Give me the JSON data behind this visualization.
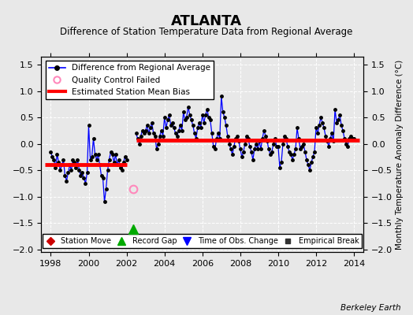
{
  "title": "ATLANTA",
  "subtitle": "Difference of Station Temperature Data from Regional Average",
  "ylabel": "Monthly Temperature Anomaly Difference (°C)",
  "xlim": [
    1997.5,
    2014.5
  ],
  "ylim": [
    -2.05,
    1.65
  ],
  "yticks": [
    -2,
    -1.5,
    -1,
    -0.5,
    0,
    0.5,
    1,
    1.5
  ],
  "xticks": [
    1998,
    2000,
    2002,
    2004,
    2006,
    2008,
    2010,
    2012,
    2014
  ],
  "fig_bg_color": "#e8e8e8",
  "plot_bg_color": "#e8e8e8",
  "line_color": "#0000ff",
  "dot_color": "#000000",
  "bias_color": "#ff0000",
  "segment1_x_start": 1997.7,
  "segment1_x_end": 2002.0,
  "segment1_bias": -0.4,
  "segment2_x_start": 2002.5,
  "segment2_x_end": 2014.3,
  "segment2_bias": 0.07,
  "record_gap_x": 2002.33,
  "record_gap_y": -1.62,
  "qc_fail_x": 2002.33,
  "qc_fail_y": -0.85,
  "berkeley_earth_text": "Berkeley Earth",
  "data_x": [
    1998.0,
    1998.083,
    1998.167,
    1998.25,
    1998.333,
    1998.417,
    1998.5,
    1998.583,
    1998.667,
    1998.75,
    1998.833,
    1998.917,
    1999.0,
    1999.083,
    1999.167,
    1999.25,
    1999.333,
    1999.417,
    1999.5,
    1999.583,
    1999.667,
    1999.75,
    1999.833,
    1999.917,
    2000.0,
    2000.083,
    2000.167,
    2000.25,
    2000.333,
    2000.417,
    2000.5,
    2000.583,
    2000.667,
    2000.75,
    2000.833,
    2000.917,
    2001.0,
    2001.083,
    2001.167,
    2001.25,
    2001.333,
    2001.417,
    2001.5,
    2001.583,
    2001.667,
    2001.75,
    2001.833,
    2001.917,
    2002.0,
    2002.5,
    2002.583,
    2002.667,
    2002.75,
    2002.833,
    2002.917,
    2003.0,
    2003.083,
    2003.167,
    2003.25,
    2003.333,
    2003.417,
    2003.5,
    2003.583,
    2003.667,
    2003.75,
    2003.833,
    2003.917,
    2004.0,
    2004.083,
    2004.167,
    2004.25,
    2004.333,
    2004.417,
    2004.5,
    2004.583,
    2004.667,
    2004.75,
    2004.833,
    2004.917,
    2005.0,
    2005.083,
    2005.167,
    2005.25,
    2005.333,
    2005.417,
    2005.5,
    2005.583,
    2005.667,
    2005.75,
    2005.833,
    2005.917,
    2006.0,
    2006.083,
    2006.167,
    2006.25,
    2006.333,
    2006.417,
    2006.5,
    2006.583,
    2006.667,
    2006.75,
    2006.833,
    2006.917,
    2007.0,
    2007.083,
    2007.167,
    2007.25,
    2007.333,
    2007.417,
    2007.5,
    2007.583,
    2007.667,
    2007.75,
    2007.833,
    2007.917,
    2008.0,
    2008.083,
    2008.167,
    2008.25,
    2008.333,
    2008.417,
    2008.5,
    2008.583,
    2008.667,
    2008.75,
    2008.833,
    2008.917,
    2009.0,
    2009.083,
    2009.167,
    2009.25,
    2009.333,
    2009.417,
    2009.5,
    2009.583,
    2009.667,
    2009.75,
    2009.833,
    2009.917,
    2010.0,
    2010.083,
    2010.167,
    2010.25,
    2010.333,
    2010.417,
    2010.5,
    2010.583,
    2010.667,
    2010.75,
    2010.833,
    2010.917,
    2011.0,
    2011.083,
    2011.167,
    2011.25,
    2011.333,
    2011.417,
    2011.5,
    2011.583,
    2011.667,
    2011.75,
    2011.833,
    2011.917,
    2012.0,
    2012.083,
    2012.167,
    2012.25,
    2012.333,
    2012.417,
    2012.5,
    2012.583,
    2012.667,
    2012.75,
    2012.833,
    2012.917,
    2013.0,
    2013.083,
    2013.167,
    2013.25,
    2013.333,
    2013.417,
    2013.5,
    2013.583,
    2013.667,
    2013.75,
    2013.833,
    2013.917,
    2014.0
  ],
  "data_y": [
    -0.15,
    -0.25,
    -0.3,
    -0.45,
    -0.2,
    -0.35,
    -0.5,
    -0.4,
    -0.3,
    -0.6,
    -0.7,
    -0.55,
    -0.4,
    -0.5,
    -0.3,
    -0.35,
    -0.45,
    -0.3,
    -0.5,
    -0.6,
    -0.55,
    -0.65,
    -0.75,
    -0.55,
    0.35,
    -0.3,
    -0.25,
    0.1,
    -0.2,
    -0.3,
    -0.2,
    -0.4,
    -0.6,
    -0.65,
    -1.1,
    -0.85,
    -0.5,
    -0.3,
    -0.15,
    -0.2,
    -0.35,
    -0.2,
    -0.4,
    -0.3,
    -0.45,
    -0.5,
    -0.35,
    -0.25,
    -0.3,
    0.2,
    0.1,
    0.0,
    0.15,
    0.25,
    0.2,
    0.25,
    0.35,
    0.2,
    0.3,
    0.4,
    0.2,
    0.15,
    -0.1,
    0.0,
    0.15,
    0.25,
    0.15,
    0.5,
    0.3,
    0.45,
    0.55,
    0.35,
    0.4,
    0.3,
    0.2,
    0.15,
    0.25,
    0.35,
    0.25,
    0.6,
    0.45,
    0.5,
    0.7,
    0.55,
    0.45,
    0.35,
    0.2,
    0.1,
    0.3,
    0.4,
    0.3,
    0.55,
    0.4,
    0.55,
    0.65,
    0.5,
    0.45,
    0.2,
    -0.05,
    -0.1,
    0.1,
    0.2,
    0.1,
    0.9,
    0.6,
    0.5,
    0.35,
    0.15,
    0.0,
    -0.1,
    -0.2,
    -0.05,
    0.1,
    0.15,
    0.05,
    -0.1,
    -0.25,
    -0.15,
    0.0,
    0.15,
    0.1,
    -0.05,
    -0.15,
    -0.3,
    -0.1,
    0.0,
    -0.1,
    0.05,
    -0.1,
    0.1,
    0.25,
    0.15,
    0.05,
    -0.1,
    -0.2,
    -0.15,
    0.0,
    0.1,
    -0.05,
    -0.05,
    -0.45,
    -0.35,
    0.0,
    0.15,
    0.1,
    -0.05,
    -0.15,
    -0.2,
    -0.3,
    -0.2,
    -0.1,
    0.3,
    0.1,
    -0.1,
    -0.05,
    0.0,
    -0.15,
    -0.3,
    -0.4,
    -0.5,
    -0.35,
    -0.25,
    -0.15,
    0.3,
    0.2,
    0.35,
    0.5,
    0.4,
    0.3,
    0.15,
    0.05,
    -0.05,
    0.1,
    0.2,
    0.05,
    0.65,
    0.4,
    0.45,
    0.55,
    0.35,
    0.25,
    0.1,
    0.0,
    -0.05,
    0.1,
    0.15,
    0.1,
    0.1
  ]
}
